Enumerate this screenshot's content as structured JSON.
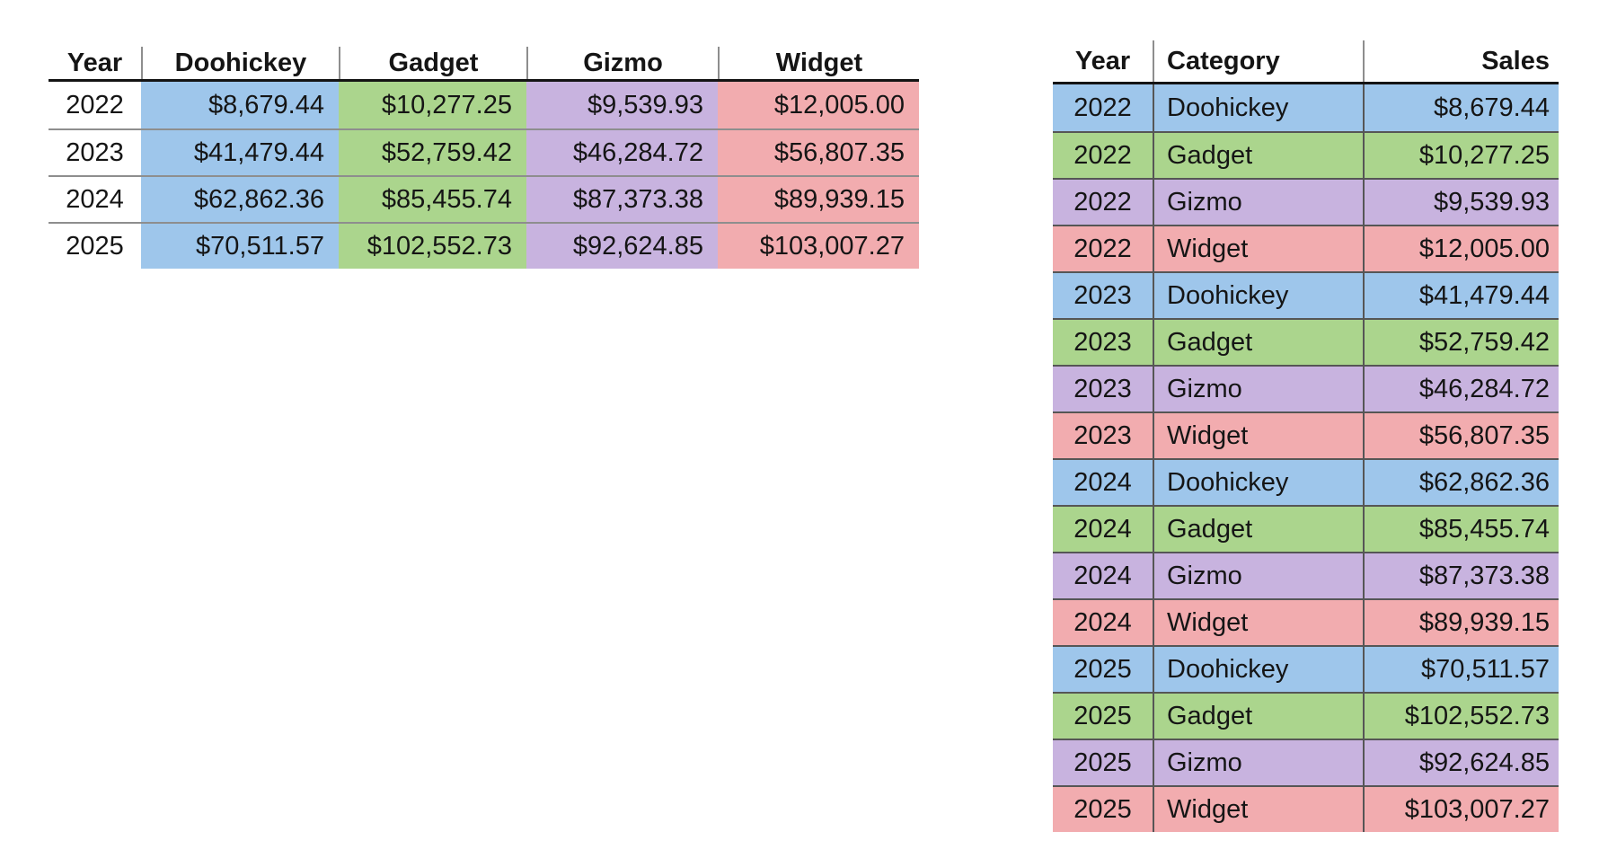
{
  "colors": {
    "doohickey": "#9EC6EB",
    "gadget": "#ABD58D",
    "gizmo": "#C8B3DF",
    "widget": "#F2ACAF",
    "header_rule": "#141414",
    "pivot_grid_line": "#8e8e8e",
    "long_grid_line": "#565656"
  },
  "chart_data": [
    {
      "type": "table",
      "columns": [
        "Year",
        "Doohickey",
        "Gadget",
        "Gizmo",
        "Widget"
      ],
      "rows": [
        [
          "2022",
          "$8,679.44",
          "$10,277.25",
          "$9,539.93",
          "$12,005.00"
        ],
        [
          "2023",
          "$41,479.44",
          "$52,759.42",
          "$46,284.72",
          "$56,807.35"
        ],
        [
          "2024",
          "$62,862.36",
          "$85,455.74",
          "$87,373.38",
          "$89,939.15"
        ],
        [
          "2025",
          "$70,511.57",
          "$102,552.73",
          "$92,624.85",
          "$103,007.27"
        ]
      ]
    },
    {
      "type": "table",
      "columns": [
        "Year",
        "Category",
        "Sales"
      ],
      "rows": [
        [
          "2022",
          "Doohickey",
          "$8,679.44"
        ],
        [
          "2022",
          "Gadget",
          "$10,277.25"
        ],
        [
          "2022",
          "Gizmo",
          "$9,539.93"
        ],
        [
          "2022",
          "Widget",
          "$12,005.00"
        ],
        [
          "2023",
          "Doohickey",
          "$41,479.44"
        ],
        [
          "2023",
          "Gadget",
          "$52,759.42"
        ],
        [
          "2023",
          "Gizmo",
          "$46,284.72"
        ],
        [
          "2023",
          "Widget",
          "$56,807.35"
        ],
        [
          "2024",
          "Doohickey",
          "$62,862.36"
        ],
        [
          "2024",
          "Gadget",
          "$85,455.74"
        ],
        [
          "2024",
          "Gizmo",
          "$87,373.38"
        ],
        [
          "2024",
          "Widget",
          "$89,939.15"
        ],
        [
          "2025",
          "Doohickey",
          "$70,511.57"
        ],
        [
          "2025",
          "Gadget",
          "$102,552.73"
        ],
        [
          "2025",
          "Gizmo",
          "$92,624.85"
        ],
        [
          "2025",
          "Widget",
          "$103,007.27"
        ]
      ]
    }
  ]
}
